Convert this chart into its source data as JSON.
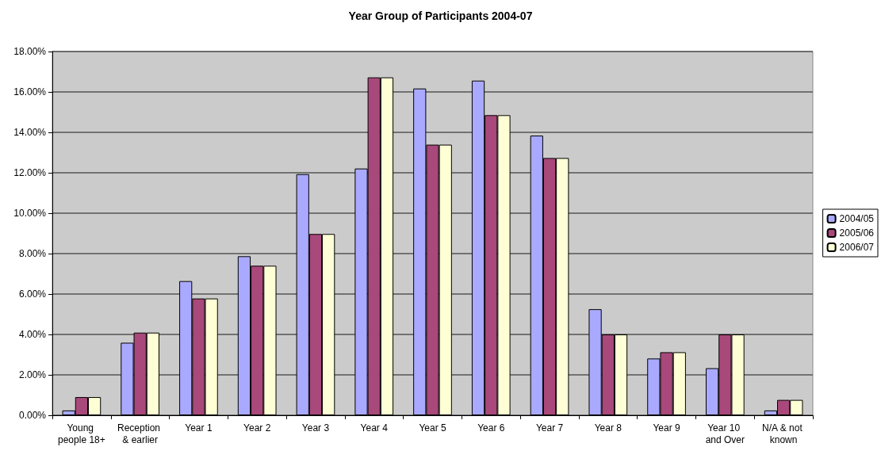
{
  "chart_data": {
    "type": "bar",
    "title": "Year Group of Participants 2004-07",
    "categories": [
      "Young people 18+",
      "Reception & earlier",
      "Year 1",
      "Year 2",
      "Year 3",
      "Year 4",
      "Year 5",
      "Year 6",
      "Year 7",
      "Year 8",
      "Year 9",
      "Year 10 and Over",
      "N/A & not known"
    ],
    "series": [
      {
        "name": "2004/05",
        "color": "#a9aaff",
        "values": [
          0.24,
          3.59,
          6.64,
          7.87,
          11.93,
          12.21,
          16.17,
          16.56,
          13.84,
          5.25,
          2.81,
          2.33,
          0.24
        ]
      },
      {
        "name": "2005/06",
        "color": "#a9487a",
        "values": [
          0.9,
          4.09,
          5.78,
          7.4,
          8.97,
          16.72,
          13.39,
          14.85,
          12.73,
          4.0,
          3.12,
          4.0,
          0.76
        ]
      },
      {
        "name": "2006/07",
        "color": "#ffffd6",
        "values": [
          0.9,
          4.09,
          5.78,
          7.4,
          8.97,
          16.72,
          13.39,
          14.85,
          12.73,
          4.0,
          3.12,
          4.0,
          0.76
        ]
      }
    ],
    "ylim": [
      0,
      18
    ],
    "yticks": [
      {
        "value": 0,
        "label": "0.00%"
      },
      {
        "value": 2,
        "label": "2.00%"
      },
      {
        "value": 4,
        "label": "4.00%"
      },
      {
        "value": 6,
        "label": "6.00%"
      },
      {
        "value": 8,
        "label": "8.00%"
      },
      {
        "value": 10,
        "label": "10.00%"
      },
      {
        "value": 12,
        "label": "12.00%"
      },
      {
        "value": 14,
        "label": "14.00%"
      },
      {
        "value": 16,
        "label": "16.00%"
      },
      {
        "value": 18,
        "label": "18.00%"
      }
    ],
    "grid": "y",
    "legend": "right"
  }
}
